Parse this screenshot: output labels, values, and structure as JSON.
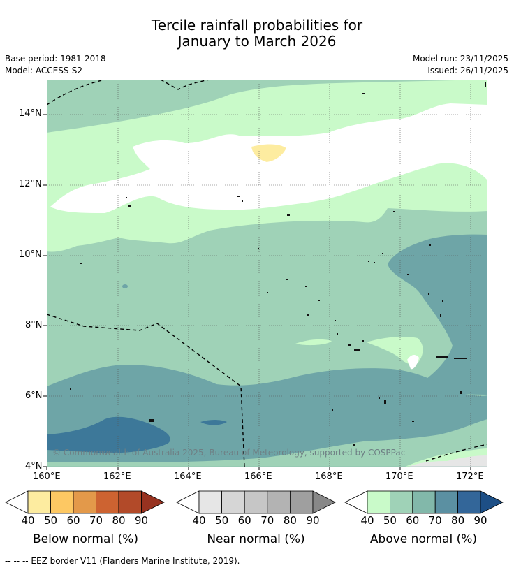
{
  "title": {
    "line1": "Tercile rainfall probabilities for",
    "line2": "January to March 2026"
  },
  "info": {
    "base_period": "Base period: 1981-2018",
    "model": "Model: ACCESS-S2",
    "model_run": "Model run: 23/11/2025",
    "issued": "Issued: 26/11/2025"
  },
  "map": {
    "latitude_labels": [
      "14°N",
      "12°N",
      "10°N",
      "8°N",
      "6°N",
      "4°N"
    ],
    "longitude_labels": [
      "160°E",
      "162°E",
      "164°E",
      "166°E",
      "168°E",
      "170°E",
      "172°E"
    ],
    "copyright": "© Commonwealth of Australia 2025, Bureau of Meteorology, supported by COSPPac"
  },
  "legends": {
    "ticks": [
      "40",
      "50",
      "60",
      "70",
      "80",
      "90"
    ],
    "below": {
      "label": "Below normal (%)",
      "colors": [
        "#fdeca0",
        "#fdc863",
        "#e3994a",
        "#cd6331",
        "#b24a29",
        "#973220"
      ]
    },
    "near": {
      "label": "Near normal (%)",
      "colors": [
        "#e6e6e6",
        "#d6d6d6",
        "#c6c6c6",
        "#b3b3b3",
        "#9f9f9f",
        "#888888"
      ]
    },
    "above": {
      "label": "Above normal (%)",
      "colors": [
        "#c9fac9",
        "#9fd2b7",
        "#82b8aa",
        "#5b90a2",
        "#336699",
        "#1d4f86"
      ]
    }
  },
  "footnote": "--  --  -- EEZ border V11 (Flanders Marine Institute, 2019)."
}
